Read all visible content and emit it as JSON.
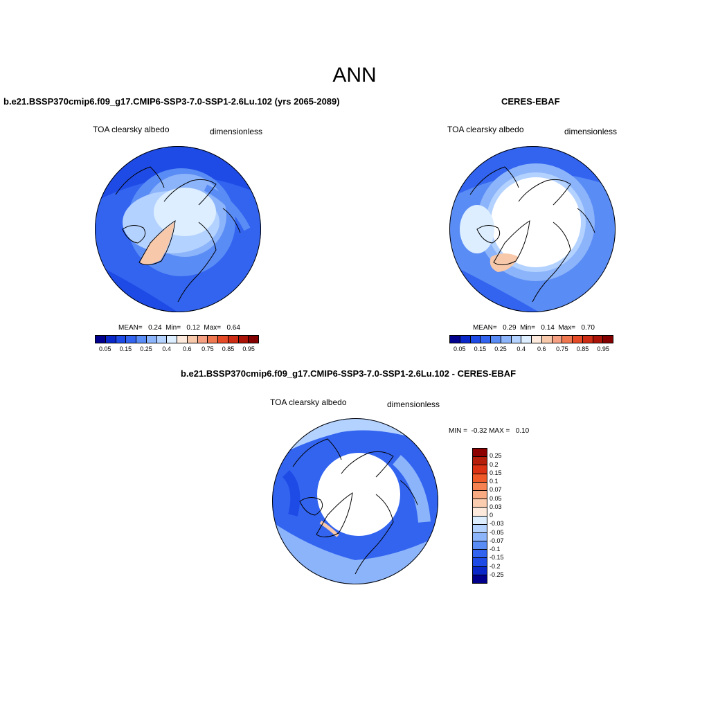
{
  "title": "ANN",
  "panels": {
    "model": {
      "title": "b.e21.BSSP370cmip6.f09_g17.CMIP6-SSP3-7.0-SSP1-2.6Lu.102 (yrs 2065-2089)",
      "variable": "TOA clearsky albedo",
      "units": "dimensionless",
      "stats": "MEAN=   0.24  Min=   0.12  Max=   0.64"
    },
    "obs": {
      "title": "CERES-EBAF",
      "variable": "TOA clearsky albedo",
      "units": "dimensionless",
      "stats": "MEAN=   0.29  Min=   0.14  Max=   0.70"
    },
    "diff": {
      "title": "b.e21.BSSP370cmip6.f09_g17.CMIP6-SSP3-7.0-SSP1-2.6Lu.102 - CERES-EBAF",
      "variable": "TOA clearsky albedo",
      "units": "dimensionless",
      "stats": "MIN =  -0.32 MAX =   0.10"
    }
  },
  "colorbar_h": {
    "colors": [
      "#00008c",
      "#0a28c8",
      "#1e4be6",
      "#3264f0",
      "#5a8cf5",
      "#8cb4fa",
      "#b4d2ff",
      "#dceeff",
      "#fdeadc",
      "#f8c8aa",
      "#f5a082",
      "#f07850",
      "#e64b28",
      "#cd2d14",
      "#aa1408",
      "#820000"
    ],
    "tick_labels": [
      "0.05",
      "0.15",
      "0.25",
      "0.4",
      "0.6",
      "0.75",
      "0.85",
      "0.95"
    ]
  },
  "colorbar_v": {
    "colors": [
      "#8c0000",
      "#b41e0a",
      "#dc3214",
      "#f05a28",
      "#f58250",
      "#f8aa82",
      "#fbcdb0",
      "#fdeadc",
      "#dceeff",
      "#b4d2ff",
      "#8cb4fa",
      "#5a8cf5",
      "#3264f0",
      "#1e4be6",
      "#0a28c8",
      "#00008c"
    ],
    "tick_labels": [
      "0.25",
      "0.2",
      "0.15",
      "0.1",
      "0.07",
      "0.05",
      "0.03",
      "0",
      "-0.03",
      "-0.05",
      "-0.07",
      "-0.1",
      "-0.15",
      "-0.2",
      "-0.25"
    ]
  }
}
